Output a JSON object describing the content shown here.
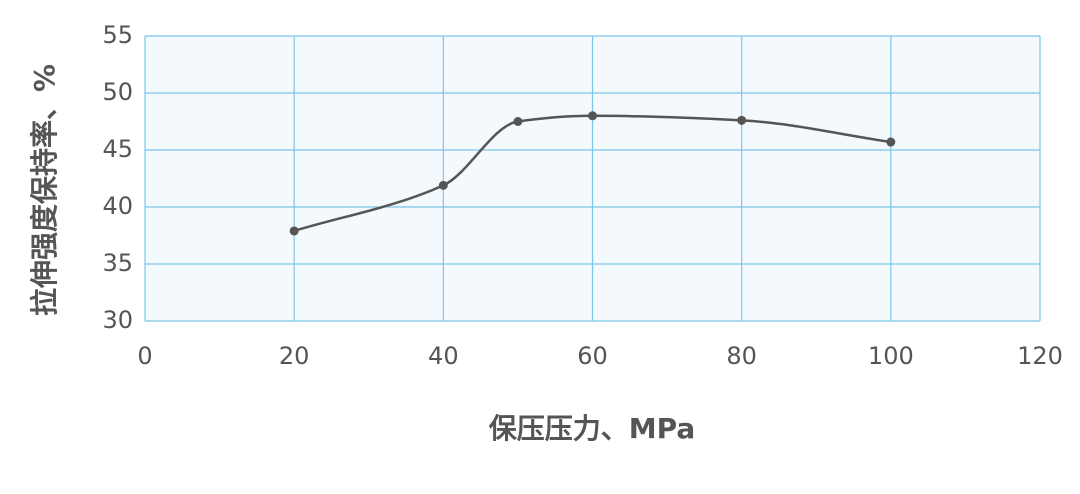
{
  "chart_data": {
    "type": "line",
    "x_label": "保压压力、MPa",
    "y_label": "拉伸强度保持率、%",
    "x": [
      20,
      40,
      50,
      60,
      80,
      100
    ],
    "series": [
      {
        "color": "#555555",
        "values": [
          37.9,
          41.9,
          47.5,
          48.0,
          47.6,
          45.7
        ]
      }
    ],
    "xlim": [
      0,
      120
    ],
    "xticks": [
      0,
      20,
      40,
      60,
      80,
      100,
      120
    ],
    "ylim": [
      30,
      55
    ],
    "yticks": [
      30,
      35,
      40,
      45,
      50,
      55
    ],
    "grid": true,
    "smooth": true
  }
}
